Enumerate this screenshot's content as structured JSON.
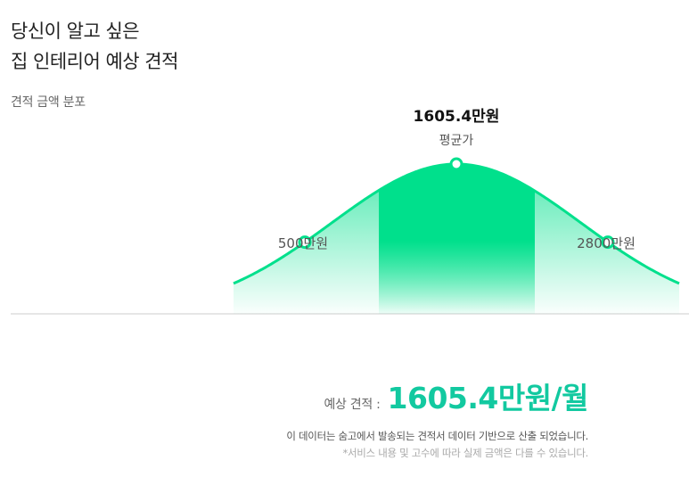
{
  "header": {
    "title_line1": "당신이 알고 싶은",
    "title_line2": "집 인테리어 예상 견적",
    "subtitle": "견적 금액 분포"
  },
  "colors": {
    "accent": "#00e08c",
    "accent_text": "#12c9a0",
    "baseline": "#cccccc"
  },
  "chart_data": {
    "type": "area",
    "title": "",
    "xlabel": "",
    "ylabel": "",
    "grid": false,
    "unit": "만원",
    "annotations": [
      {
        "key": "low",
        "value": 500,
        "label": "500만원",
        "sublabel": ""
      },
      {
        "key": "mean",
        "value": 1605.4,
        "label": "1605.4만원",
        "sublabel": "평균가"
      },
      {
        "key": "high",
        "value": 2800,
        "label": "2800만원",
        "sublabel": ""
      }
    ]
  },
  "estimate": {
    "label": "예상 견적 :",
    "value": "1605.4만원/월"
  },
  "notes": {
    "line1": "이 데이터는 숨고에서 발송되는 견적서 데이터 기반으로 산출 되었습니다.",
    "line2": "*서비스 내용 및 고수에 따라 실제 금액은 다를 수 있습니다."
  }
}
